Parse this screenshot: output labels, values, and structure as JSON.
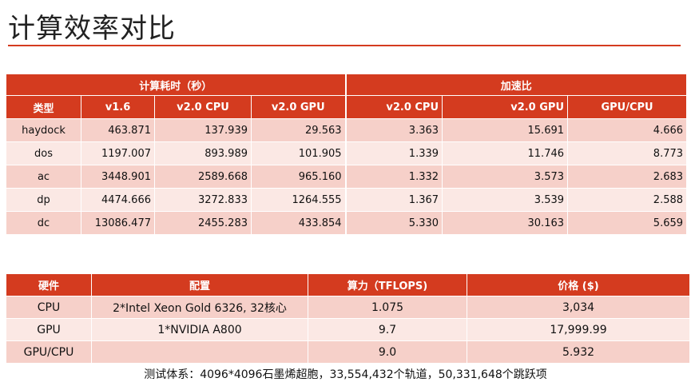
{
  "title": "计算效率对比",
  "accent_color": "#d43b1f",
  "table1": {
    "group_time": "计算耗时（秒）",
    "group_speedup": "加速比",
    "col_type": "类型",
    "col_v16": "v1.6",
    "col_v20cpu": "v2.0 CPU",
    "col_v20gpu": "v2.0 GPU",
    "col_s_v20cpu": "v2.0 CPU",
    "col_s_v20gpu": "v2.0 GPU",
    "col_s_gpucpu": "GPU/CPU",
    "rows": [
      {
        "type": "haydock",
        "v16": "463.871",
        "cpu": "137.939",
        "gpu": "29.563",
        "s_cpu": "3.363",
        "s_gpu": "15.691",
        "s_ratio": "4.666"
      },
      {
        "type": "dos",
        "v16": "1197.007",
        "cpu": "893.989",
        "gpu": "101.905",
        "s_cpu": "1.339",
        "s_gpu": "11.746",
        "s_ratio": "8.773"
      },
      {
        "type": "ac",
        "v16": "3448.901",
        "cpu": "2589.668",
        "gpu": "965.160",
        "s_cpu": "1.332",
        "s_gpu": "3.573",
        "s_ratio": "2.683"
      },
      {
        "type": "dp",
        "v16": "4474.666",
        "cpu": "3272.833",
        "gpu": "1264.555",
        "s_cpu": "1.367",
        "s_gpu": "3.539",
        "s_ratio": "2.588"
      },
      {
        "type": "dc",
        "v16": "13086.477",
        "cpu": "2455.283",
        "gpu": "433.854",
        "s_cpu": "5.330",
        "s_gpu": "30.163",
        "s_ratio": "5.659"
      }
    ]
  },
  "table2": {
    "col_hw": "硬件",
    "col_config": "配置",
    "col_power": "算力（TFLOPS)",
    "col_price": "价格 ($)",
    "rows": [
      {
        "hw": "CPU",
        "config": "2*Intel Xeon Gold 6326, 32核心",
        "power": "1.075",
        "price": "3,034"
      },
      {
        "hw": "GPU",
        "config": "1*NVIDIA A800",
        "power": "9.7",
        "price": "17,999.99"
      },
      {
        "hw": "GPU/CPU",
        "config": "",
        "power": "9.0",
        "price": "5.932"
      }
    ]
  },
  "footnote": "测试体系：4096*4096石墨烯超胞，33,554,432个轨道，50,331,648个跳跃项"
}
